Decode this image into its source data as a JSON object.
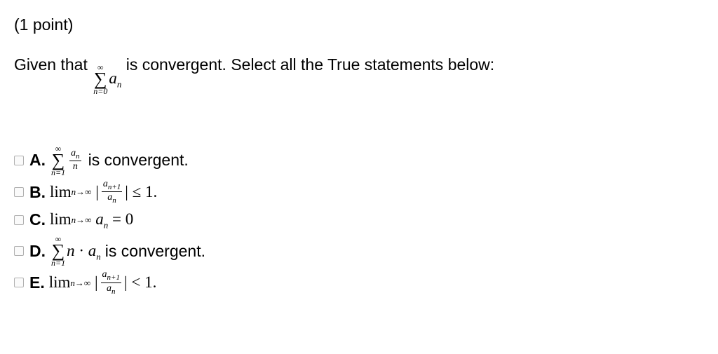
{
  "points_label": "(1 point)",
  "prompt_prefix": "Given that ",
  "prompt_suffix": " is convergent. Select all the True statements below:",
  "sigma": "∑",
  "infty": "∞",
  "sum_lower_n0": "n=0",
  "sum_lower_n1": "n=1",
  "a": "a",
  "n": "n",
  "nplus1": "n+1",
  "arrow": "→",
  "lim": "lim",
  "dot": "·",
  "eq": "=",
  "le": "≤",
  "lt": "<",
  "zero": "0",
  "one": "1.",
  "labels": {
    "A": "A.",
    "B": "B.",
    "C": "C.",
    "D": "D.",
    "E": "E."
  },
  "is_convergent": " is convergent.",
  "colors": {
    "text": "#000000",
    "bg": "#ffffff",
    "checkbox_border": "#b0b0b0"
  },
  "font_sizes": {
    "body": 23,
    "sum_script": 12,
    "frac_script": 14
  }
}
